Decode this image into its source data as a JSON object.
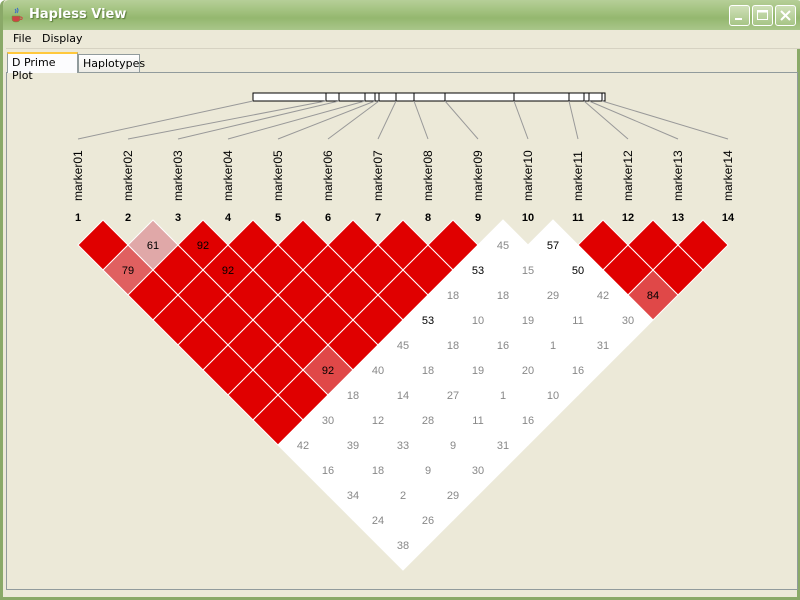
{
  "window": {
    "title": "Hapless View"
  },
  "menu": {
    "file": "File",
    "display": "Display"
  },
  "tabs": {
    "dprime": "D Prime Plot",
    "haplotypes": "Haplotypes"
  },
  "colors": {
    "strong_ld": "#e00000",
    "no_ld": "#ffffff",
    "weak_text": "#888888"
  },
  "markers": [
    {
      "num": "1",
      "name": "marker01"
    },
    {
      "num": "2",
      "name": "marker02"
    },
    {
      "num": "3",
      "name": "marker03"
    },
    {
      "num": "4",
      "name": "marker04"
    },
    {
      "num": "5",
      "name": "marker05"
    },
    {
      "num": "6",
      "name": "marker06"
    },
    {
      "num": "7",
      "name": "marker07"
    },
    {
      "num": "8",
      "name": "marker08"
    },
    {
      "num": "9",
      "name": "marker09"
    },
    {
      "num": "10",
      "name": "marker10"
    },
    {
      "num": "11",
      "name": "marker11"
    },
    {
      "num": "12",
      "name": "marker12"
    },
    {
      "num": "13",
      "name": "marker13"
    },
    {
      "num": "14",
      "name": "marker14"
    }
  ],
  "ld_cells": [
    {
      "i": 1,
      "j": 2,
      "value": "",
      "color": "#e00000",
      "text_color": "#000"
    },
    {
      "i": 2,
      "j": 3,
      "value": "61",
      "color": "#e0a8a8",
      "text_color": "#000"
    },
    {
      "i": 3,
      "j": 4,
      "value": "92",
      "color": "#e00000",
      "text_color": "#000"
    },
    {
      "i": 4,
      "j": 5,
      "value": "",
      "color": "#e00000",
      "text_color": "#000"
    },
    {
      "i": 5,
      "j": 6,
      "value": "",
      "color": "#e00000",
      "text_color": "#000"
    },
    {
      "i": 6,
      "j": 7,
      "value": "",
      "color": "#e00000",
      "text_color": "#000"
    },
    {
      "i": 7,
      "j": 8,
      "value": "",
      "color": "#e00000",
      "text_color": "#000"
    },
    {
      "i": 8,
      "j": 9,
      "value": "",
      "color": "#e00000",
      "text_color": "#000"
    },
    {
      "i": 9,
      "j": 10,
      "value": "45",
      "color": "#ffffff",
      "text_color": "#888"
    },
    {
      "i": 10,
      "j": 11,
      "value": "57",
      "color": "#ffffff",
      "text_color": "#000"
    },
    {
      "i": 11,
      "j": 12,
      "value": "",
      "color": "#e00000",
      "text_color": "#000"
    },
    {
      "i": 12,
      "j": 13,
      "value": "",
      "color": "#e00000",
      "text_color": "#000"
    },
    {
      "i": 13,
      "j": 14,
      "value": "",
      "color": "#e00000",
      "text_color": "#000"
    },
    {
      "i": 1,
      "j": 3,
      "value": "79",
      "color": "#e06060",
      "text_color": "#000"
    },
    {
      "i": 2,
      "j": 4,
      "value": "",
      "color": "#e00000",
      "text_color": "#000"
    },
    {
      "i": 3,
      "j": 5,
      "value": "92",
      "color": "#e00000",
      "text_color": "#000"
    },
    {
      "i": 4,
      "j": 6,
      "value": "",
      "color": "#e00000",
      "text_color": "#000"
    },
    {
      "i": 5,
      "j": 7,
      "value": "",
      "color": "#e00000",
      "text_color": "#000"
    },
    {
      "i": 6,
      "j": 8,
      "value": "",
      "color": "#e00000",
      "text_color": "#000"
    },
    {
      "i": 7,
      "j": 9,
      "value": "",
      "color": "#e00000",
      "text_color": "#000"
    },
    {
      "i": 8,
      "j": 10,
      "value": "53",
      "color": "#ffffff",
      "text_color": "#000"
    },
    {
      "i": 9,
      "j": 11,
      "value": "15",
      "color": "#ffffff",
      "text_color": "#888"
    },
    {
      "i": 10,
      "j": 12,
      "value": "50",
      "color": "#ffffff",
      "text_color": "#000"
    },
    {
      "i": 11,
      "j": 13,
      "value": "",
      "color": "#e00000",
      "text_color": "#000"
    },
    {
      "i": 12,
      "j": 14,
      "value": "",
      "color": "#e00000",
      "text_color": "#000"
    },
    {
      "i": 1,
      "j": 4,
      "value": "",
      "color": "#e00000",
      "text_color": "#000"
    },
    {
      "i": 2,
      "j": 5,
      "value": "",
      "color": "#e00000",
      "text_color": "#000"
    },
    {
      "i": 3,
      "j": 6,
      "value": "",
      "color": "#e00000",
      "text_color": "#000"
    },
    {
      "i": 4,
      "j": 7,
      "value": "",
      "color": "#e00000",
      "text_color": "#000"
    },
    {
      "i": 5,
      "j": 8,
      "value": "",
      "color": "#e00000",
      "text_color": "#000"
    },
    {
      "i": 6,
      "j": 9,
      "value": "",
      "color": "#e00000",
      "text_color": "#000"
    },
    {
      "i": 7,
      "j": 10,
      "value": "18",
      "color": "#ffffff",
      "text_color": "#888"
    },
    {
      "i": 8,
      "j": 11,
      "value": "18",
      "color": "#ffffff",
      "text_color": "#888"
    },
    {
      "i": 9,
      "j": 12,
      "value": "29",
      "color": "#ffffff",
      "text_color": "#888"
    },
    {
      "i": 10,
      "j": 13,
      "value": "42",
      "color": "#ffffff",
      "text_color": "#888"
    },
    {
      "i": 11,
      "j": 14,
      "value": "84",
      "color": "#e04848",
      "text_color": "#000"
    },
    {
      "i": 1,
      "j": 5,
      "value": "",
      "color": "#e00000",
      "text_color": "#000"
    },
    {
      "i": 2,
      "j": 6,
      "value": "",
      "color": "#e00000",
      "text_color": "#000"
    },
    {
      "i": 3,
      "j": 7,
      "value": "",
      "color": "#e00000",
      "text_color": "#000"
    },
    {
      "i": 4,
      "j": 8,
      "value": "",
      "color": "#e00000",
      "text_color": "#000"
    },
    {
      "i": 5,
      "j": 9,
      "value": "",
      "color": "#e00000",
      "text_color": "#000"
    },
    {
      "i": 6,
      "j": 10,
      "value": "53",
      "color": "#ffffff",
      "text_color": "#000"
    },
    {
      "i": 7,
      "j": 11,
      "value": "10",
      "color": "#ffffff",
      "text_color": "#888"
    },
    {
      "i": 8,
      "j": 12,
      "value": "19",
      "color": "#ffffff",
      "text_color": "#888"
    },
    {
      "i": 9,
      "j": 13,
      "value": "11",
      "color": "#ffffff",
      "text_color": "#888"
    },
    {
      "i": 10,
      "j": 14,
      "value": "30",
      "color": "#ffffff",
      "text_color": "#888"
    },
    {
      "i": 1,
      "j": 6,
      "value": "",
      "color": "#e00000",
      "text_color": "#000"
    },
    {
      "i": 2,
      "j": 7,
      "value": "",
      "color": "#e00000",
      "text_color": "#000"
    },
    {
      "i": 3,
      "j": 8,
      "value": "",
      "color": "#e00000",
      "text_color": "#000"
    },
    {
      "i": 4,
      "j": 9,
      "value": "",
      "color": "#e00000",
      "text_color": "#000"
    },
    {
      "i": 5,
      "j": 10,
      "value": "45",
      "color": "#ffffff",
      "text_color": "#888"
    },
    {
      "i": 6,
      "j": 11,
      "value": "18",
      "color": "#ffffff",
      "text_color": "#888"
    },
    {
      "i": 7,
      "j": 12,
      "value": "16",
      "color": "#ffffff",
      "text_color": "#888"
    },
    {
      "i": 8,
      "j": 13,
      "value": "1",
      "color": "#ffffff",
      "text_color": "#888"
    },
    {
      "i": 9,
      "j": 14,
      "value": "31",
      "color": "#ffffff",
      "text_color": "#888"
    },
    {
      "i": 1,
      "j": 7,
      "value": "",
      "color": "#e00000",
      "text_color": "#000"
    },
    {
      "i": 2,
      "j": 8,
      "value": "",
      "color": "#e00000",
      "text_color": "#000"
    },
    {
      "i": 3,
      "j": 9,
      "value": "92",
      "color": "#e04848",
      "text_color": "#000"
    },
    {
      "i": 4,
      "j": 10,
      "value": "40",
      "color": "#ffffff",
      "text_color": "#888"
    },
    {
      "i": 5,
      "j": 11,
      "value": "18",
      "color": "#ffffff",
      "text_color": "#888"
    },
    {
      "i": 6,
      "j": 12,
      "value": "19",
      "color": "#ffffff",
      "text_color": "#888"
    },
    {
      "i": 7,
      "j": 13,
      "value": "20",
      "color": "#ffffff",
      "text_color": "#888"
    },
    {
      "i": 8,
      "j": 14,
      "value": "16",
      "color": "#ffffff",
      "text_color": "#888"
    },
    {
      "i": 1,
      "j": 8,
      "value": "",
      "color": "#e00000",
      "text_color": "#000"
    },
    {
      "i": 2,
      "j": 9,
      "value": "",
      "color": "#e00000",
      "text_color": "#000"
    },
    {
      "i": 3,
      "j": 10,
      "value": "18",
      "color": "#ffffff",
      "text_color": "#888"
    },
    {
      "i": 4,
      "j": 11,
      "value": "14",
      "color": "#ffffff",
      "text_color": "#888"
    },
    {
      "i": 5,
      "j": 12,
      "value": "27",
      "color": "#ffffff",
      "text_color": "#888"
    },
    {
      "i": 6,
      "j": 13,
      "value": "1",
      "color": "#ffffff",
      "text_color": "#888"
    },
    {
      "i": 7,
      "j": 14,
      "value": "10",
      "color": "#ffffff",
      "text_color": "#888"
    },
    {
      "i": 1,
      "j": 9,
      "value": "",
      "color": "#e00000",
      "text_color": "#000"
    },
    {
      "i": 2,
      "j": 10,
      "value": "30",
      "color": "#ffffff",
      "text_color": "#888"
    },
    {
      "i": 3,
      "j": 11,
      "value": "12",
      "color": "#ffffff",
      "text_color": "#888"
    },
    {
      "i": 4,
      "j": 12,
      "value": "28",
      "color": "#ffffff",
      "text_color": "#888"
    },
    {
      "i": 5,
      "j": 13,
      "value": "11",
      "color": "#ffffff",
      "text_color": "#888"
    },
    {
      "i": 6,
      "j": 14,
      "value": "16",
      "color": "#ffffff",
      "text_color": "#888"
    },
    {
      "i": 1,
      "j": 10,
      "value": "42",
      "color": "#ffffff",
      "text_color": "#888"
    },
    {
      "i": 2,
      "j": 11,
      "value": "39",
      "color": "#ffffff",
      "text_color": "#888"
    },
    {
      "i": 3,
      "j": 12,
      "value": "33",
      "color": "#ffffff",
      "text_color": "#888"
    },
    {
      "i": 4,
      "j": 13,
      "value": "9",
      "color": "#ffffff",
      "text_color": "#888"
    },
    {
      "i": 5,
      "j": 14,
      "value": "31",
      "color": "#ffffff",
      "text_color": "#888"
    },
    {
      "i": 1,
      "j": 11,
      "value": "16",
      "color": "#ffffff",
      "text_color": "#888"
    },
    {
      "i": 2,
      "j": 12,
      "value": "18",
      "color": "#ffffff",
      "text_color": "#888"
    },
    {
      "i": 3,
      "j": 13,
      "value": "9",
      "color": "#ffffff",
      "text_color": "#888"
    },
    {
      "i": 4,
      "j": 14,
      "value": "30",
      "color": "#ffffff",
      "text_color": "#888"
    },
    {
      "i": 1,
      "j": 12,
      "value": "34",
      "color": "#ffffff",
      "text_color": "#888"
    },
    {
      "i": 2,
      "j": 13,
      "value": "2",
      "color": "#ffffff",
      "text_color": "#888"
    },
    {
      "i": 3,
      "j": 14,
      "value": "29",
      "color": "#ffffff",
      "text_color": "#888"
    },
    {
      "i": 1,
      "j": 13,
      "value": "24",
      "color": "#ffffff",
      "text_color": "#888"
    },
    {
      "i": 2,
      "j": 14,
      "value": "26",
      "color": "#ffffff",
      "text_color": "#888"
    },
    {
      "i": 1,
      "j": 14,
      "value": "38",
      "color": "#ffffff",
      "text_color": "#888"
    }
  ]
}
